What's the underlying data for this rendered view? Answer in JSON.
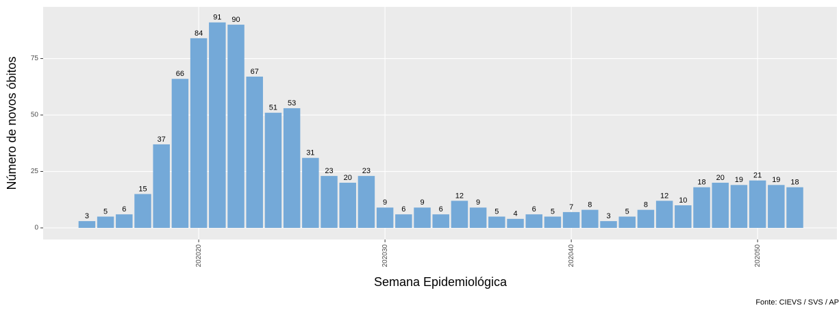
{
  "chart_data": {
    "type": "bar",
    "x_label": "Semana Epidemiológica",
    "y_label": "Número de novos óbitos",
    "caption": "Fonte: CIEVS / SVS / AP",
    "x": [
      202014,
      202015,
      202016,
      202017,
      202018,
      202019,
      202020,
      202021,
      202022,
      202023,
      202024,
      202025,
      202026,
      202027,
      202028,
      202029,
      202030,
      202031,
      202032,
      202033,
      202034,
      202035,
      202036,
      202037,
      202038,
      202039,
      202040,
      202041,
      202042,
      202043,
      202044,
      202045,
      202046,
      202047,
      202048,
      202049,
      202050,
      202051,
      202052
    ],
    "values": [
      3,
      5,
      6,
      15,
      37,
      66,
      84,
      91,
      90,
      67,
      51,
      53,
      31,
      23,
      20,
      23,
      9,
      6,
      9,
      6,
      12,
      9,
      5,
      4,
      6,
      5,
      7,
      8,
      3,
      5,
      8,
      12,
      10,
      18,
      20,
      19,
      21,
      19,
      18
    ],
    "color": "#74a9d8",
    "xlim": [
      202011.65,
      202054.26
    ],
    "xticks": [
      202020,
      202030,
      202040,
      202050
    ],
    "ylim": [
      -5.15,
      97.9
    ],
    "yticks": [
      0,
      25,
      50,
      75
    ],
    "grid": true
  }
}
